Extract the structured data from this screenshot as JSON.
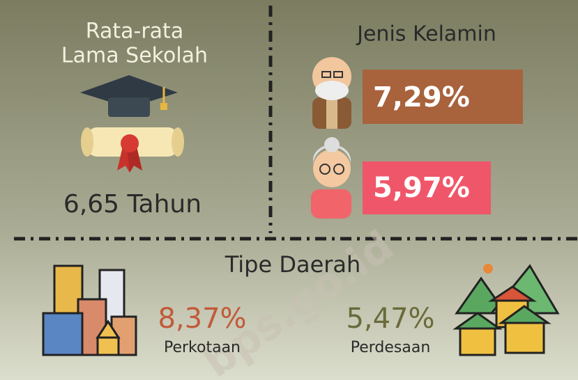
{
  "education": {
    "title_lines": [
      "Rata-rata",
      "Lama Sekolah"
    ],
    "value": "6,65 Tahun"
  },
  "gender": {
    "title": "Jenis Kelamin",
    "male": "7,29%",
    "female": "5,97%"
  },
  "region": {
    "title": "Tipe Daerah",
    "urban": {
      "value": "8,37%",
      "label": "Perkotaan"
    },
    "rural": {
      "value": "5,47%",
      "label": "Perdesaan"
    }
  },
  "watermark": "bps.go.id"
}
